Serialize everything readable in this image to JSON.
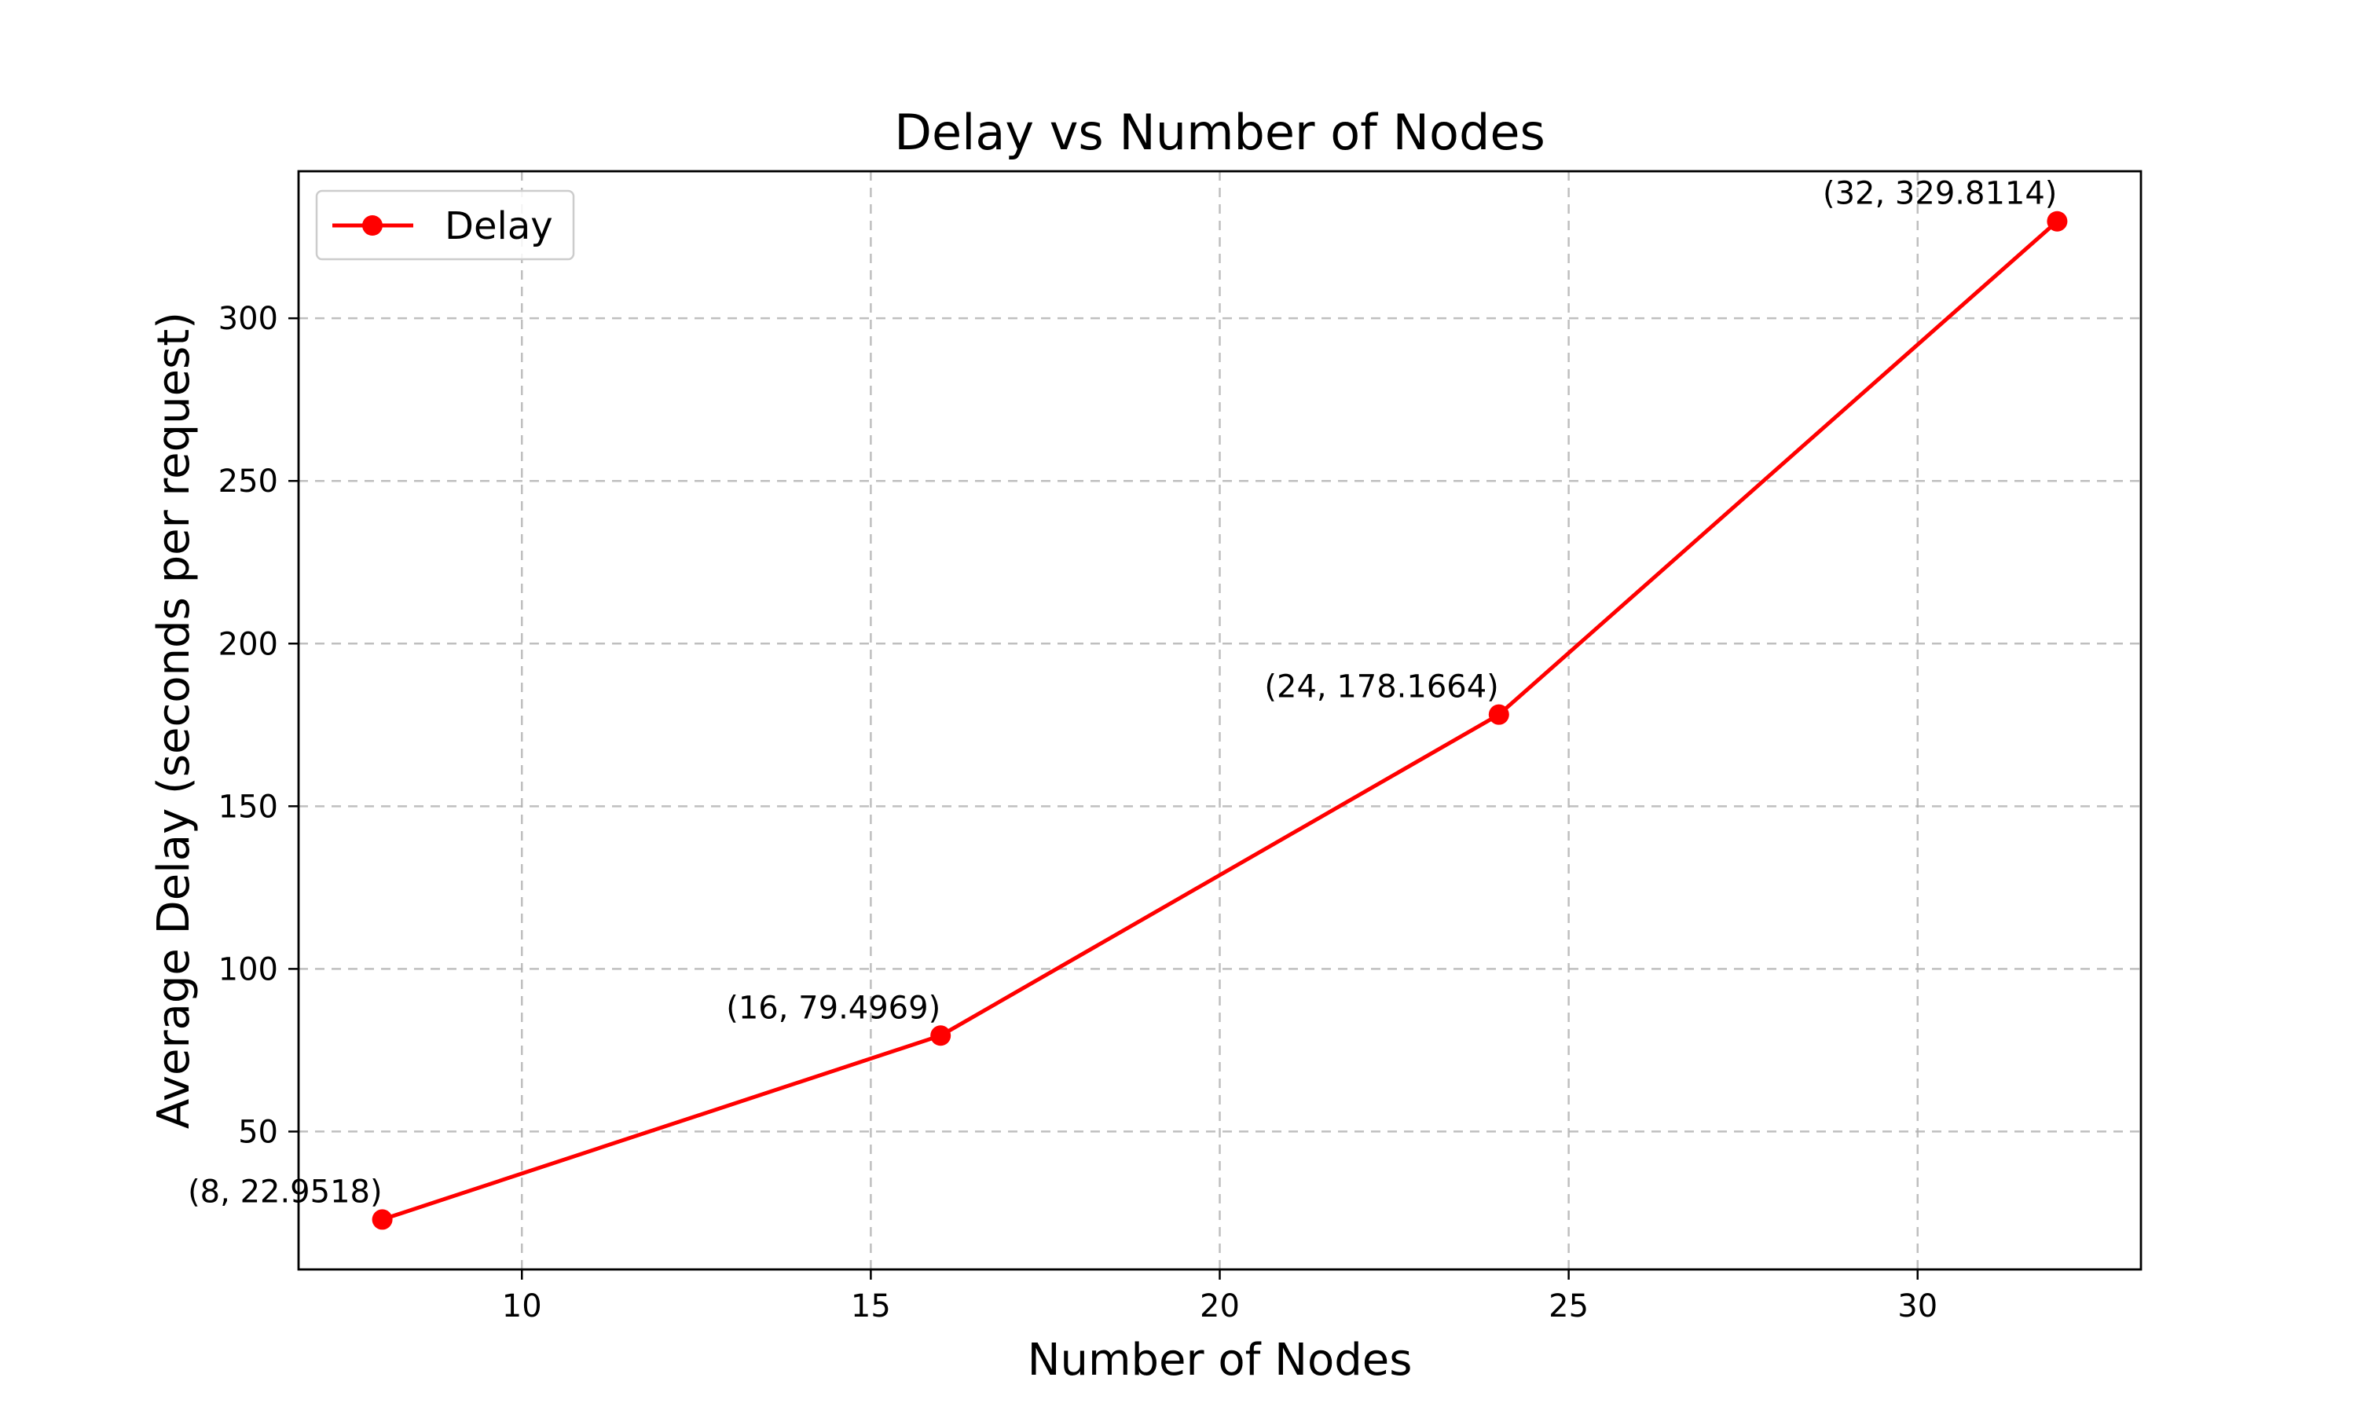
{
  "chart_data": {
    "type": "line",
    "title": "Delay vs Number of Nodes",
    "xlabel": "Number of Nodes",
    "ylabel": "Average Delay (seconds per request)",
    "xlim": [
      6.8,
      33.2
    ],
    "ylim": [
      7.6,
      345.2
    ],
    "xticks": [
      10,
      15,
      20,
      25,
      30
    ],
    "yticks": [
      50,
      100,
      150,
      200,
      250,
      300
    ],
    "grid": true,
    "legend_position": "top-left",
    "series": [
      {
        "name": "Delay",
        "color": "#ff0000",
        "marker": "circle",
        "x": [
          8,
          16,
          24,
          32
        ],
        "y": [
          22.9518,
          79.4969,
          178.1664,
          329.8114
        ],
        "labels": [
          "(8, 22.9518)",
          "(16, 79.4969)",
          "(24, 178.1664)",
          "(32, 329.8114)"
        ]
      }
    ]
  }
}
